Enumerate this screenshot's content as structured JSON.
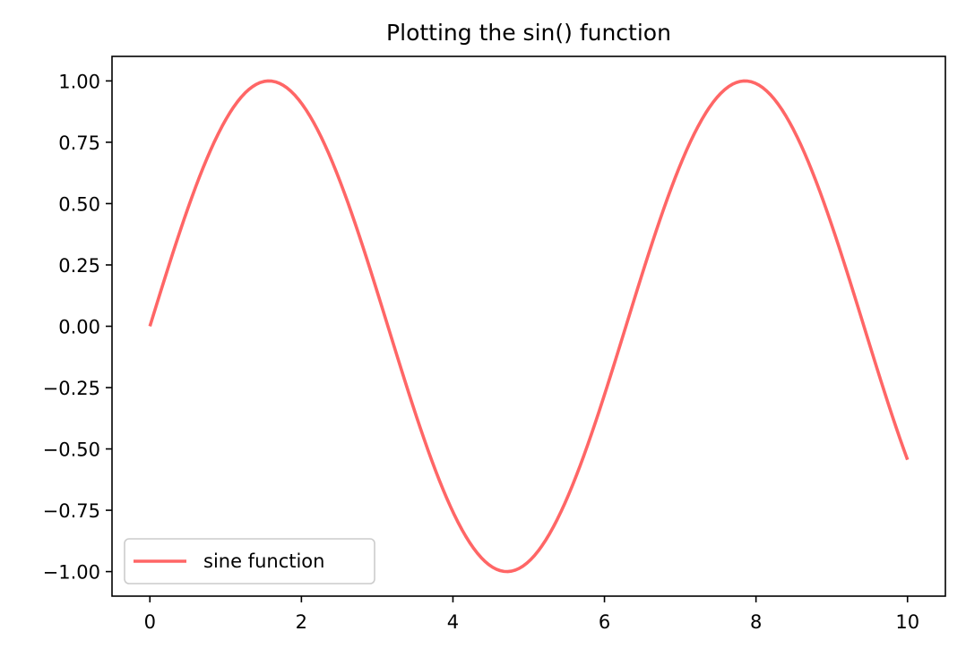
{
  "chart_data": {
    "type": "line",
    "title": "Plotting the sin() function",
    "xlabel": "",
    "ylabel": "",
    "xlim": [
      -0.5,
      10.5
    ],
    "ylim": [
      -1.1,
      1.1
    ],
    "x_ticks": [
      0,
      2,
      4,
      6,
      8,
      10
    ],
    "x_tick_labels": [
      "0",
      "2",
      "4",
      "6",
      "8",
      "10"
    ],
    "y_ticks": [
      1.0,
      0.75,
      0.5,
      0.25,
      0.0,
      -0.25,
      -0.5,
      -0.75,
      -1.0
    ],
    "y_tick_labels": [
      "1.00",
      "0.75",
      "0.50",
      "0.25",
      "0.00",
      "−0.25",
      "−0.50",
      "−0.75",
      "−1.00"
    ],
    "grid": false,
    "legend_position": "lower-left",
    "series": [
      {
        "name": "sine function",
        "function": "sin(x)",
        "x_range": [
          0,
          10
        ],
        "samples": 200,
        "color": "#ff6666",
        "x": [
          0,
          0.5,
          1,
          1.5,
          1.5708,
          2,
          2.5,
          3,
          3.5,
          4,
          4.5,
          4.7124,
          5,
          5.5,
          6,
          6.5,
          7,
          7.5,
          7.854,
          8,
          8.5,
          9,
          9.5,
          10
        ],
        "values": [
          0.0,
          0.479,
          0.841,
          0.997,
          1.0,
          0.909,
          0.598,
          0.141,
          -0.351,
          -0.757,
          -0.978,
          -1.0,
          -0.959,
          -0.706,
          -0.279,
          0.215,
          0.657,
          0.938,
          1.0,
          0.989,
          0.798,
          0.412,
          -0.075,
          -0.544
        ]
      }
    ]
  }
}
